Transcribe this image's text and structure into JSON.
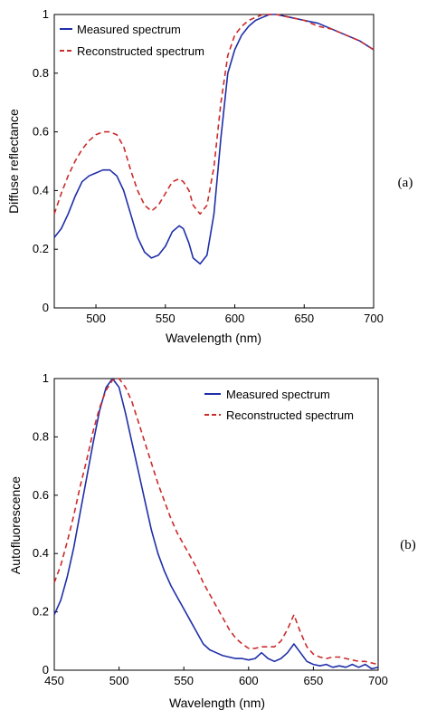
{
  "colors": {
    "measured": "#1f2fa8",
    "reconstructed": "#cc2a2a"
  },
  "chart_data": [
    {
      "type": "line",
      "panel_label": "(a)",
      "xlabel": "Wavelength (nm)",
      "ylabel": "Diffuse reflectance",
      "xlim": [
        470,
        700
      ],
      "ylim": [
        0,
        1
      ],
      "xticks": [
        500,
        550,
        600,
        650,
        700
      ],
      "yticks": [
        0,
        0.2,
        0.4,
        0.6,
        0.8,
        1
      ],
      "ytick_labels": [
        "0",
        "0.2",
        "0.4",
        "0.6",
        "0.8",
        "1"
      ],
      "legend_position": "top-left",
      "series": [
        {
          "name": "Measured spectrum",
          "style": "solid",
          "x": [
            470,
            475,
            480,
            485,
            490,
            495,
            500,
            505,
            510,
            515,
            520,
            525,
            530,
            535,
            540,
            545,
            550,
            555,
            560,
            563,
            567,
            570,
            575,
            580,
            585,
            590,
            595,
            600,
            605,
            610,
            615,
            620,
            625,
            630,
            640,
            650,
            660,
            670,
            680,
            690,
            700
          ],
          "y": [
            0.24,
            0.27,
            0.32,
            0.38,
            0.43,
            0.45,
            0.46,
            0.47,
            0.47,
            0.45,
            0.4,
            0.32,
            0.24,
            0.19,
            0.17,
            0.18,
            0.21,
            0.26,
            0.28,
            0.27,
            0.22,
            0.17,
            0.15,
            0.18,
            0.32,
            0.58,
            0.8,
            0.88,
            0.93,
            0.96,
            0.98,
            0.99,
            1.0,
            1.0,
            0.99,
            0.98,
            0.97,
            0.95,
            0.93,
            0.91,
            0.88
          ]
        },
        {
          "name": "Reconstructed spectrum",
          "style": "dashed",
          "x": [
            470,
            475,
            480,
            485,
            490,
            495,
            500,
            505,
            510,
            515,
            520,
            525,
            530,
            535,
            540,
            545,
            550,
            555,
            560,
            563,
            567,
            570,
            575,
            580,
            585,
            590,
            595,
            600,
            605,
            610,
            615,
            620,
            625,
            630,
            640,
            650,
            660,
            670,
            680,
            690,
            700
          ],
          "y": [
            0.32,
            0.39,
            0.45,
            0.5,
            0.54,
            0.57,
            0.59,
            0.6,
            0.6,
            0.59,
            0.55,
            0.47,
            0.4,
            0.35,
            0.33,
            0.35,
            0.39,
            0.43,
            0.44,
            0.43,
            0.4,
            0.35,
            0.32,
            0.35,
            0.48,
            0.7,
            0.86,
            0.93,
            0.96,
            0.98,
            0.99,
            1.0,
            1.0,
            1.0,
            0.99,
            0.98,
            0.96,
            0.95,
            0.93,
            0.91,
            0.88
          ]
        }
      ]
    },
    {
      "type": "line",
      "panel_label": "(b)",
      "xlabel": "Wavelength (nm)",
      "ylabel": "Autofluorescence",
      "xlim": [
        450,
        700
      ],
      "ylim": [
        0,
        1
      ],
      "xticks": [
        450,
        500,
        550,
        600,
        650,
        700
      ],
      "yticks": [
        0,
        0.2,
        0.4,
        0.6,
        0.8,
        1
      ],
      "ytick_labels": [
        "0",
        "0.2",
        "0.4",
        "0.6",
        "0.8",
        "1"
      ],
      "legend_position": "top-right",
      "series": [
        {
          "name": "Measured spectrum",
          "style": "solid",
          "x": [
            450,
            455,
            460,
            465,
            470,
            475,
            480,
            485,
            490,
            495,
            500,
            505,
            510,
            515,
            520,
            525,
            530,
            535,
            540,
            545,
            550,
            555,
            560,
            565,
            570,
            575,
            580,
            585,
            590,
            595,
            600,
            605,
            610,
            615,
            620,
            625,
            630,
            635,
            640,
            645,
            650,
            655,
            660,
            665,
            670,
            675,
            680,
            685,
            690,
            695,
            700
          ],
          "y": [
            0.19,
            0.24,
            0.32,
            0.42,
            0.54,
            0.66,
            0.78,
            0.89,
            0.97,
            1.0,
            0.97,
            0.88,
            0.78,
            0.68,
            0.58,
            0.48,
            0.4,
            0.34,
            0.29,
            0.25,
            0.21,
            0.17,
            0.13,
            0.09,
            0.07,
            0.06,
            0.05,
            0.045,
            0.04,
            0.04,
            0.035,
            0.04,
            0.06,
            0.04,
            0.03,
            0.04,
            0.06,
            0.09,
            0.06,
            0.03,
            0.02,
            0.015,
            0.02,
            0.01,
            0.015,
            0.01,
            0.02,
            0.01,
            0.02,
            0.005,
            0.01
          ]
        },
        {
          "name": "Reconstructed spectrum",
          "style": "dashed",
          "x": [
            450,
            455,
            460,
            465,
            470,
            475,
            480,
            485,
            490,
            495,
            500,
            505,
            510,
            515,
            520,
            525,
            530,
            535,
            540,
            545,
            550,
            555,
            560,
            565,
            570,
            575,
            580,
            585,
            590,
            595,
            600,
            605,
            610,
            615,
            620,
            625,
            630,
            635,
            640,
            645,
            650,
            655,
            660,
            665,
            670,
            675,
            680,
            685,
            690,
            695,
            700
          ],
          "y": [
            0.3,
            0.36,
            0.44,
            0.53,
            0.63,
            0.72,
            0.82,
            0.9,
            0.96,
            0.995,
            1.0,
            0.97,
            0.92,
            0.85,
            0.78,
            0.71,
            0.64,
            0.58,
            0.52,
            0.47,
            0.43,
            0.39,
            0.35,
            0.3,
            0.26,
            0.22,
            0.18,
            0.14,
            0.11,
            0.09,
            0.075,
            0.075,
            0.08,
            0.08,
            0.08,
            0.1,
            0.14,
            0.19,
            0.13,
            0.08,
            0.055,
            0.045,
            0.04,
            0.045,
            0.045,
            0.04,
            0.035,
            0.03,
            0.03,
            0.025,
            0.02
          ]
        }
      ]
    }
  ]
}
